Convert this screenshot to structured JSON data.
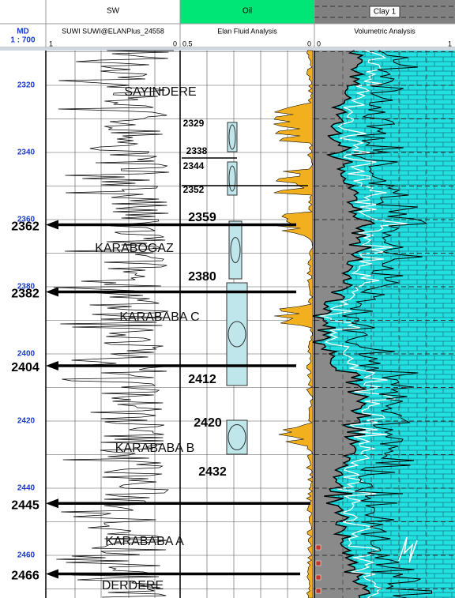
{
  "header": {
    "depth_title": "MD",
    "depth_scale": "1 : 700",
    "columns": [
      {
        "title": "SW",
        "subtitle": "SUWI SUWI@ELANPlus_24558",
        "scale_left": "1",
        "scale_right": "0"
      },
      {
        "title": "Oil",
        "subtitle": "Elan Fluid Analysis",
        "scale_left": "0.5",
        "scale_right": "0"
      },
      {
        "title": "Clay 1",
        "subtitle": "Volumetric Analysis",
        "scale_left": "0",
        "scale_right": "1"
      }
    ]
  },
  "depth_ticks": [
    "2320",
    "2340",
    "2360",
    "2380",
    "2400",
    "2420",
    "2440",
    "2460"
  ],
  "zones": [
    "SAYINDERE",
    "KARABOGAZ",
    "KARABABA C",
    "KARABABA B",
    "KARABABA A",
    "DERDERE"
  ],
  "markers": [
    "2362",
    "2382",
    "2404",
    "2445",
    "2466"
  ],
  "annotations": [
    "2329",
    "2338",
    "2344",
    "2352",
    "2359",
    "2380",
    "2412",
    "2420",
    "2432"
  ]
}
